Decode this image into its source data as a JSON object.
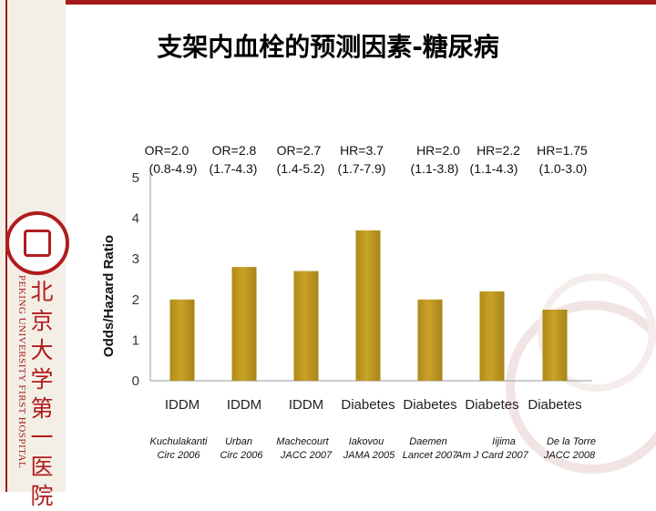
{
  "slide": {
    "title": "支架内血栓的预测因素-糖尿病"
  },
  "logo": {
    "side_text_en": "PEKING UNIVERSITY FIRST HOSPITAL",
    "side_text_cn": [
      "北",
      "京",
      "大",
      "学",
      "第",
      "一",
      "医",
      "院"
    ]
  },
  "colors": {
    "bar": "#c9a227",
    "brand_red": "#a31a1a"
  },
  "chart_data": {
    "type": "bar",
    "title": "",
    "xlabel": "",
    "ylabel": "Odds/Hazard Ratio",
    "ylim": [
      0,
      5
    ],
    "yticks": [
      0,
      1,
      2,
      3,
      4,
      5
    ],
    "grid": false,
    "categories": [
      "IDDM",
      "IDDM",
      "IDDM",
      "Diabetes",
      "Diabetes",
      "Diabetes",
      "Diabetes"
    ],
    "values": [
      2.0,
      2.8,
      2.7,
      3.7,
      2.0,
      2.2,
      1.75
    ],
    "value_labels": [
      "OR=2.0",
      "OR=2.8",
      "OR=2.7",
      "HR=3.7",
      "HR=2.0",
      "HR=2.2",
      "HR=1.75"
    ],
    "ci_labels": [
      "(0.8-4.9)",
      "(1.7-4.3)",
      "(1.4-5.2)",
      "(1.7-7.9)",
      "(1.1-3.8)",
      "(1.1-4.3)",
      "(1.0-3.0)"
    ],
    "sources": [
      {
        "author": "Kuchulakanti",
        "journal": "Circ 2006"
      },
      {
        "author": "Urban",
        "journal": "Circ 2006"
      },
      {
        "author": "Machecourt",
        "journal": "JACC 2007"
      },
      {
        "author": "Iakovou",
        "journal": "JAMA 2005"
      },
      {
        "author": "Daemen",
        "journal": "Lancet 2007"
      },
      {
        "author": "Iijima",
        "journal": "Am J Card 2007"
      },
      {
        "author": "De la Torre",
        "journal": "JACC 2008"
      }
    ]
  }
}
